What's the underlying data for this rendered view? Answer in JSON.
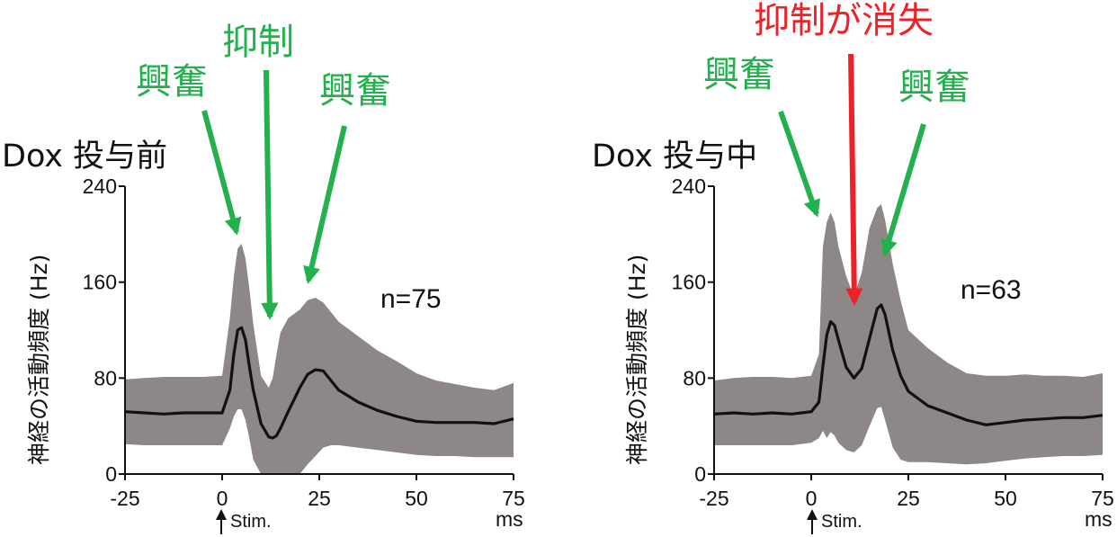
{
  "chart_data": [
    {
      "type": "line",
      "title": "Dox 投与前",
      "ylabel": "神経の活動頻度 (Hz)",
      "xlabel": "ms",
      "x_ticks": [
        "-25",
        "0",
        "25",
        "50",
        "75"
      ],
      "y_ticks": [
        "0",
        "80",
        "160",
        "240"
      ],
      "xlim": [
        -25,
        75
      ],
      "ylim": [
        0,
        240
      ],
      "n_label": "n=75",
      "stim_label": "Stim.",
      "series": [
        {
          "x": [
            -25,
            -20,
            -15,
            -10,
            -5,
            0,
            2,
            3,
            4,
            5,
            6,
            7,
            8,
            10,
            12,
            13,
            14,
            15,
            17,
            20,
            22,
            24,
            26,
            28,
            30,
            35,
            40,
            45,
            50,
            55,
            60,
            65,
            70,
            75
          ],
          "values": [
            52,
            51,
            50,
            51,
            51,
            51,
            70,
            100,
            120,
            122,
            112,
            90,
            70,
            42,
            31,
            30,
            32,
            38,
            52,
            72,
            83,
            87,
            86,
            78,
            70,
            60,
            53,
            48,
            44,
            43,
            43,
            43,
            42,
            46
          ],
          "upper": [
            79,
            80,
            81,
            81,
            81,
            82,
            130,
            165,
            188,
            192,
            180,
            155,
            125,
            82,
            72,
            80,
            100,
            118,
            130,
            137,
            145,
            147,
            143,
            135,
            127,
            115,
            103,
            94,
            84,
            78,
            75,
            72,
            70,
            76
          ],
          "lower": [
            25,
            24,
            24,
            24,
            24,
            24,
            38,
            48,
            54,
            54,
            45,
            30,
            12,
            0,
            0,
            0,
            0,
            0,
            0,
            0,
            8,
            15,
            22,
            24,
            24,
            22,
            20,
            18,
            16,
            15,
            15,
            14,
            14,
            14
          ]
        }
      ],
      "annotations": [
        {
          "text": "興奮",
          "color": "#22b14c"
        },
        {
          "text": "抑制",
          "color": "#22b14c"
        },
        {
          "text": "興奮",
          "color": "#22b14c"
        }
      ]
    },
    {
      "type": "line",
      "title": "Dox 投与中",
      "ylabel": "神経の活動頻度 (Hz)",
      "xlabel": "ms",
      "x_ticks": [
        "-25",
        "0",
        "25",
        "50",
        "75"
      ],
      "y_ticks": [
        "0",
        "80",
        "160",
        "240"
      ],
      "xlim": [
        -25,
        75
      ],
      "ylim": [
        0,
        240
      ],
      "n_label": "n=63",
      "stim_label": "Stim.",
      "series": [
        {
          "x": [
            -25,
            -20,
            -15,
            -10,
            -5,
            0,
            2,
            3,
            4,
            5,
            6,
            7,
            9,
            11,
            13,
            15,
            17,
            18,
            19,
            21,
            23,
            25,
            30,
            35,
            40,
            45,
            50,
            55,
            60,
            65,
            70,
            75
          ],
          "values": [
            50,
            51,
            50,
            51,
            50,
            52,
            60,
            90,
            116,
            127,
            124,
            112,
            89,
            80,
            88,
            113,
            138,
            141,
            133,
            103,
            82,
            69,
            57,
            51,
            45,
            41,
            43,
            45,
            46,
            47,
            47,
            49
          ],
          "upper": [
            78,
            80,
            81,
            81,
            80,
            82,
            100,
            190,
            210,
            218,
            210,
            190,
            165,
            148,
            168,
            205,
            222,
            225,
            212,
            175,
            145,
            120,
            105,
            93,
            84,
            82,
            82,
            83,
            82,
            82,
            81,
            84
          ],
          "lower": [
            24,
            24,
            24,
            24,
            24,
            26,
            30,
            36,
            30,
            35,
            32,
            26,
            20,
            18,
            24,
            40,
            55,
            56,
            45,
            22,
            12,
            10,
            10,
            9,
            8,
            9,
            11,
            13,
            14,
            15,
            15,
            16
          ]
        }
      ],
      "annotations": [
        {
          "text": "抑制が消失",
          "color": "#ee2128"
        },
        {
          "text": "興奮",
          "color": "#22b14c"
        },
        {
          "text": "興奮",
          "color": "#22b14c"
        }
      ]
    }
  ],
  "colors": {
    "band": "#8d8787",
    "mean_line": "#111111",
    "excitation": "#22b14c",
    "inhibition_lost": "#ee2128"
  }
}
